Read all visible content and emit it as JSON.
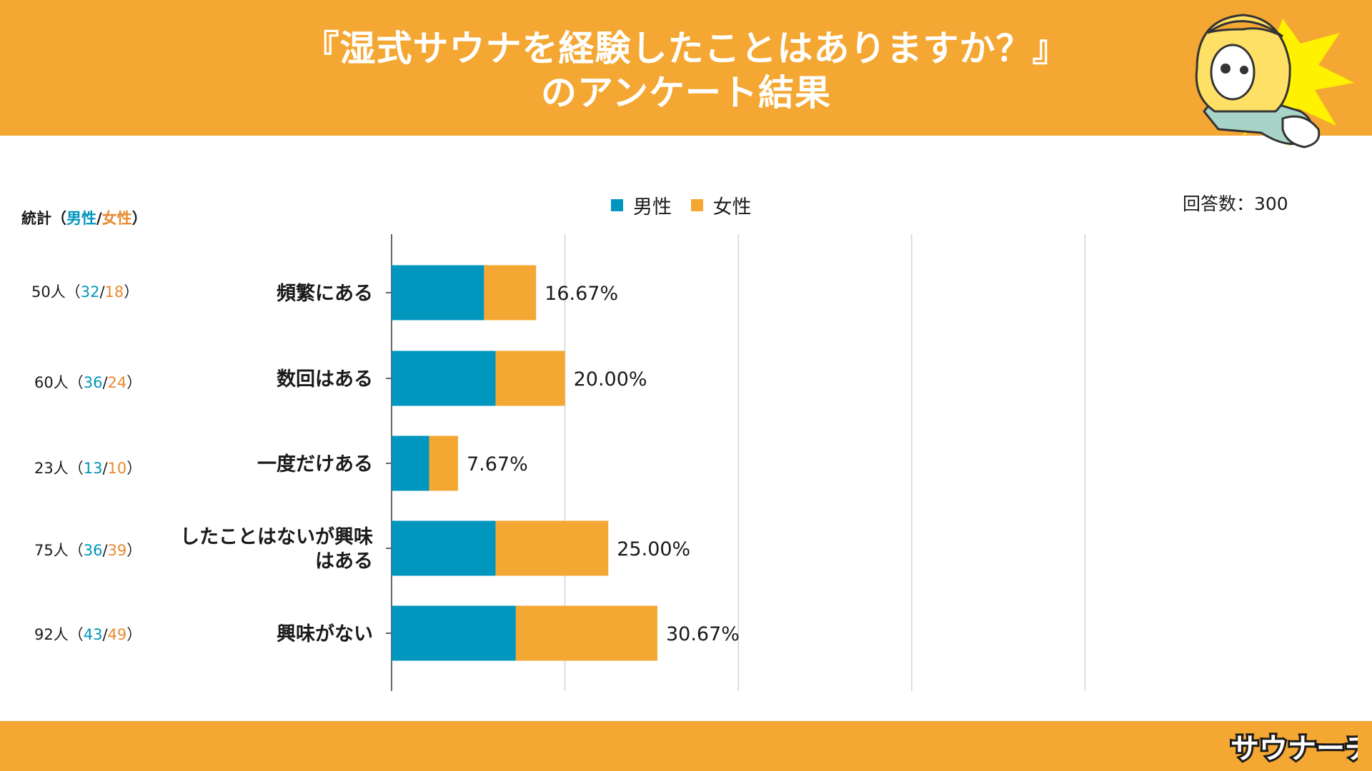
{
  "header": {
    "title_line1": "『湿式サウナを経験したことはありますか？』",
    "title_line2": "のアンケート結果"
  },
  "legend": {
    "male": "男性",
    "female": "女性"
  },
  "response_count": "回答数：300",
  "stats": {
    "heading_prefix": "統計（",
    "heading_male": "男性",
    "heading_slash": "/",
    "heading_female": "女性",
    "heading_suffix": "）",
    "rows": [
      {
        "total": "50人（",
        "male": "32",
        "slash": "/",
        "female": "18",
        "close": "）"
      },
      {
        "total": "60人（",
        "male": "36",
        "slash": "/",
        "female": "24",
        "close": "）"
      },
      {
        "total": "23人（",
        "male": "13",
        "slash": "/",
        "female": "10",
        "close": "）"
      },
      {
        "total": "75人（",
        "male": "36",
        "slash": "/",
        "female": "39",
        "close": "）"
      },
      {
        "total": "92人（",
        "male": "43",
        "slash": "/",
        "female": "49",
        "close": "）"
      }
    ]
  },
  "colors": {
    "male": "#0096bd",
    "female": "#f4a732",
    "header": "#f4a732"
  },
  "footer": {
    "logo_text": "サウナーチ"
  },
  "chart_data": {
    "type": "bar",
    "orientation": "horizontal",
    "stacked": true,
    "categories": [
      "頻繁にある",
      "数回はある",
      "一度だけある",
      "したことはないが興味はある",
      "興味がない"
    ],
    "category_lines": [
      [
        "頻繁にある"
      ],
      [
        "数回はある"
      ],
      [
        "一度だけある"
      ],
      [
        "したことはないが興味",
        "はある"
      ],
      [
        "興味がない"
      ]
    ],
    "series": [
      {
        "name": "男性",
        "values": [
          32,
          36,
          13,
          36,
          43
        ]
      },
      {
        "name": "女性",
        "values": [
          18,
          24,
          10,
          39,
          49
        ]
      }
    ],
    "labels": [
      "16.67%",
      "20.00%",
      "7.67%",
      "25.00%",
      "30.67%"
    ],
    "xlim": [
      0,
      100
    ],
    "x_gridlines": [
      0,
      20,
      40,
      60,
      80
    ],
    "legend_position": "top"
  }
}
